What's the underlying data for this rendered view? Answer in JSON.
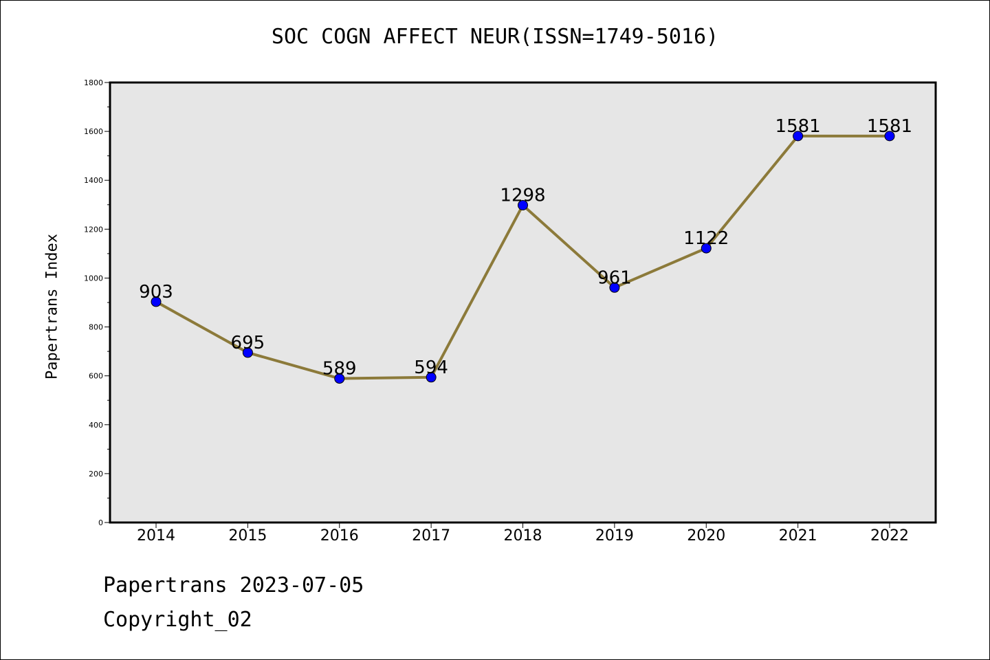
{
  "title": "SOC COGN AFFECT NEUR(ISSN=1749-5016)",
  "footer": {
    "date_line": "Papertrans 2023-07-05",
    "copyright_line": "Copyright_02"
  },
  "colors": {
    "plot_background": "#e6e6e6",
    "line": "#8c7a3a",
    "marker": "#0000ff"
  },
  "chart_data": {
    "type": "line",
    "title": "SOC COGN AFFECT NEUR(ISSN=1749-5016)",
    "xlabel": "",
    "ylabel": "Papertrans Index",
    "x": [
      "2014",
      "2015",
      "2016",
      "2017",
      "2018",
      "2019",
      "2020",
      "2021",
      "2022"
    ],
    "series": [
      {
        "values": [
          903,
          695,
          589,
          594,
          1298,
          961,
          1122,
          1581,
          1581
        ]
      }
    ],
    "data_labels": [
      "903",
      "695",
      "589",
      "594",
      "1298",
      "961",
      "1122",
      "1581",
      "1581"
    ],
    "ylim": [
      0,
      1800
    ],
    "yticks": [
      "0",
      "200",
      "400",
      "600",
      "800",
      "1000",
      "1200",
      "1400",
      "1600",
      "1800"
    ],
    "grid": false,
    "legend": "none"
  }
}
